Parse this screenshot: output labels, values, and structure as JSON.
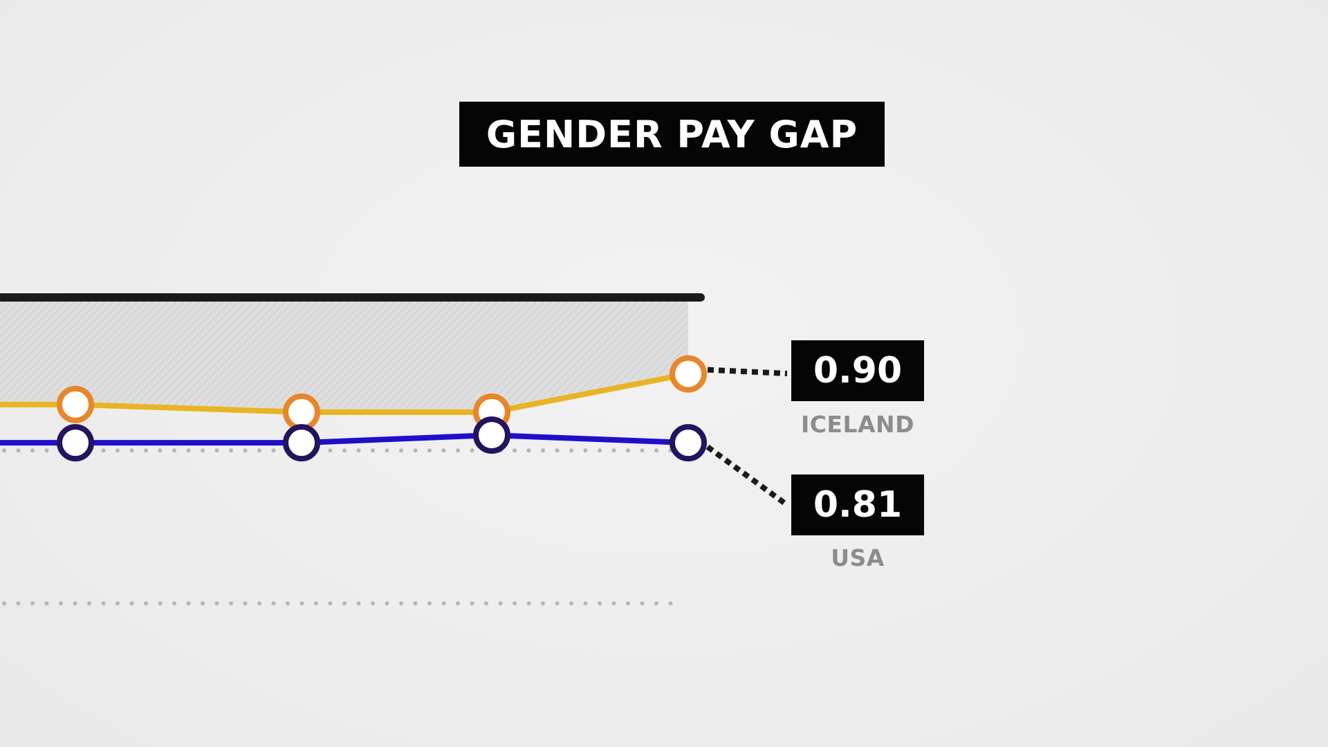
{
  "chart_data": {
    "type": "line",
    "title": "GENDER PAY GAP",
    "x": [
      1,
      2,
      3,
      4
    ],
    "ylim": [
      0.5,
      1.0
    ],
    "reference_lines": [
      {
        "value": 1.0,
        "style": "solid",
        "color": "#1a1a1a"
      },
      {
        "value": 0.8,
        "style": "dotted",
        "color": "#b5b5b5"
      },
      {
        "value": 0.6,
        "style": "dotted",
        "color": "#b5b5b5"
      }
    ],
    "series": [
      {
        "name": "ICELAND",
        "values": [
          0.86,
          0.85,
          0.85,
          0.9
        ],
        "line_color": "#e8b324",
        "marker_color": "#e8862a",
        "end_label": "0.90"
      },
      {
        "name": "USA",
        "values": [
          0.81,
          0.81,
          0.82,
          0.81
        ],
        "line_color": "#1e10c8",
        "marker_color": "#24135e",
        "end_label": "0.81"
      }
    ],
    "shaded_region": "gap between 1.0 and ICELAND"
  }
}
